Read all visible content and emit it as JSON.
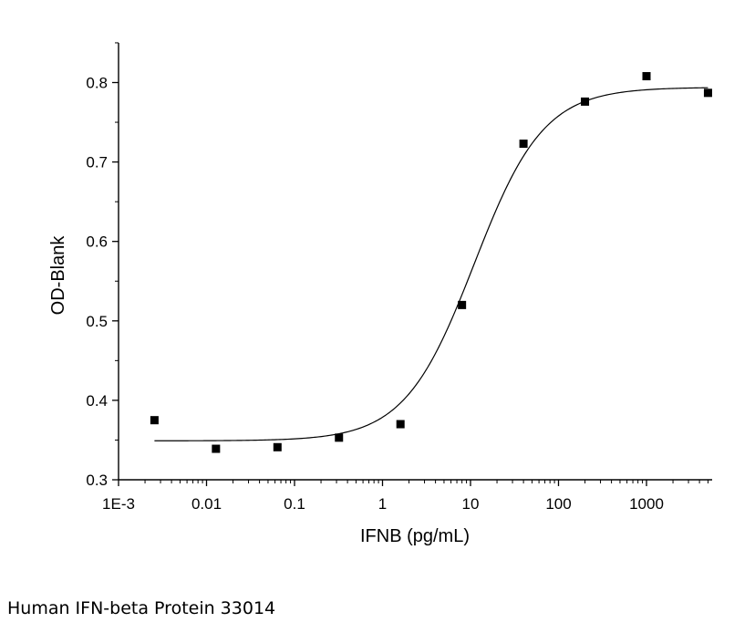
{
  "caption": "Human IFN-beta Protein 33014",
  "colors": {
    "axis": "#000000",
    "marker": "#000000",
    "curve": "#000000",
    "background": "#ffffff"
  },
  "chart_data": {
    "type": "scatter",
    "title": "",
    "xlabel": "IFNB (pg/mL)",
    "ylabel": "OD-Blank",
    "x_scale": "log",
    "xlim": [
      0.001,
      5000
    ],
    "ylim": [
      0.3,
      0.85
    ],
    "x_ticks": [
      {
        "value": 0.001,
        "label": "1E-3"
      },
      {
        "value": 0.01,
        "label": "0.01"
      },
      {
        "value": 0.1,
        "label": "0.1"
      },
      {
        "value": 1,
        "label": "1"
      },
      {
        "value": 10,
        "label": "10"
      },
      {
        "value": 100,
        "label": "100"
      },
      {
        "value": 1000,
        "label": "1000"
      }
    ],
    "y_ticks": [
      {
        "value": 0.3,
        "label": "0.3"
      },
      {
        "value": 0.4,
        "label": "0.4"
      },
      {
        "value": 0.5,
        "label": "0.5"
      },
      {
        "value": 0.6,
        "label": "0.6"
      },
      {
        "value": 0.7,
        "label": "0.7"
      },
      {
        "value": 0.8,
        "label": "0.8"
      }
    ],
    "grid": false,
    "legend": "none",
    "marker": "square",
    "series": [
      {
        "x": [
          0.00256,
          0.0128,
          0.064,
          0.32,
          1.6,
          8,
          40,
          200,
          1000,
          5000
        ],
        "y": [
          0.375,
          0.339,
          0.341,
          0.353,
          0.37,
          0.52,
          0.723,
          0.776,
          0.808,
          0.787
        ]
      }
    ],
    "fit_curve": {
      "model": "4PL",
      "bottom": 0.349,
      "top": 0.794,
      "ec50": 11,
      "hill": 1.1,
      "x_range": [
        0.00256,
        5000
      ]
    }
  }
}
